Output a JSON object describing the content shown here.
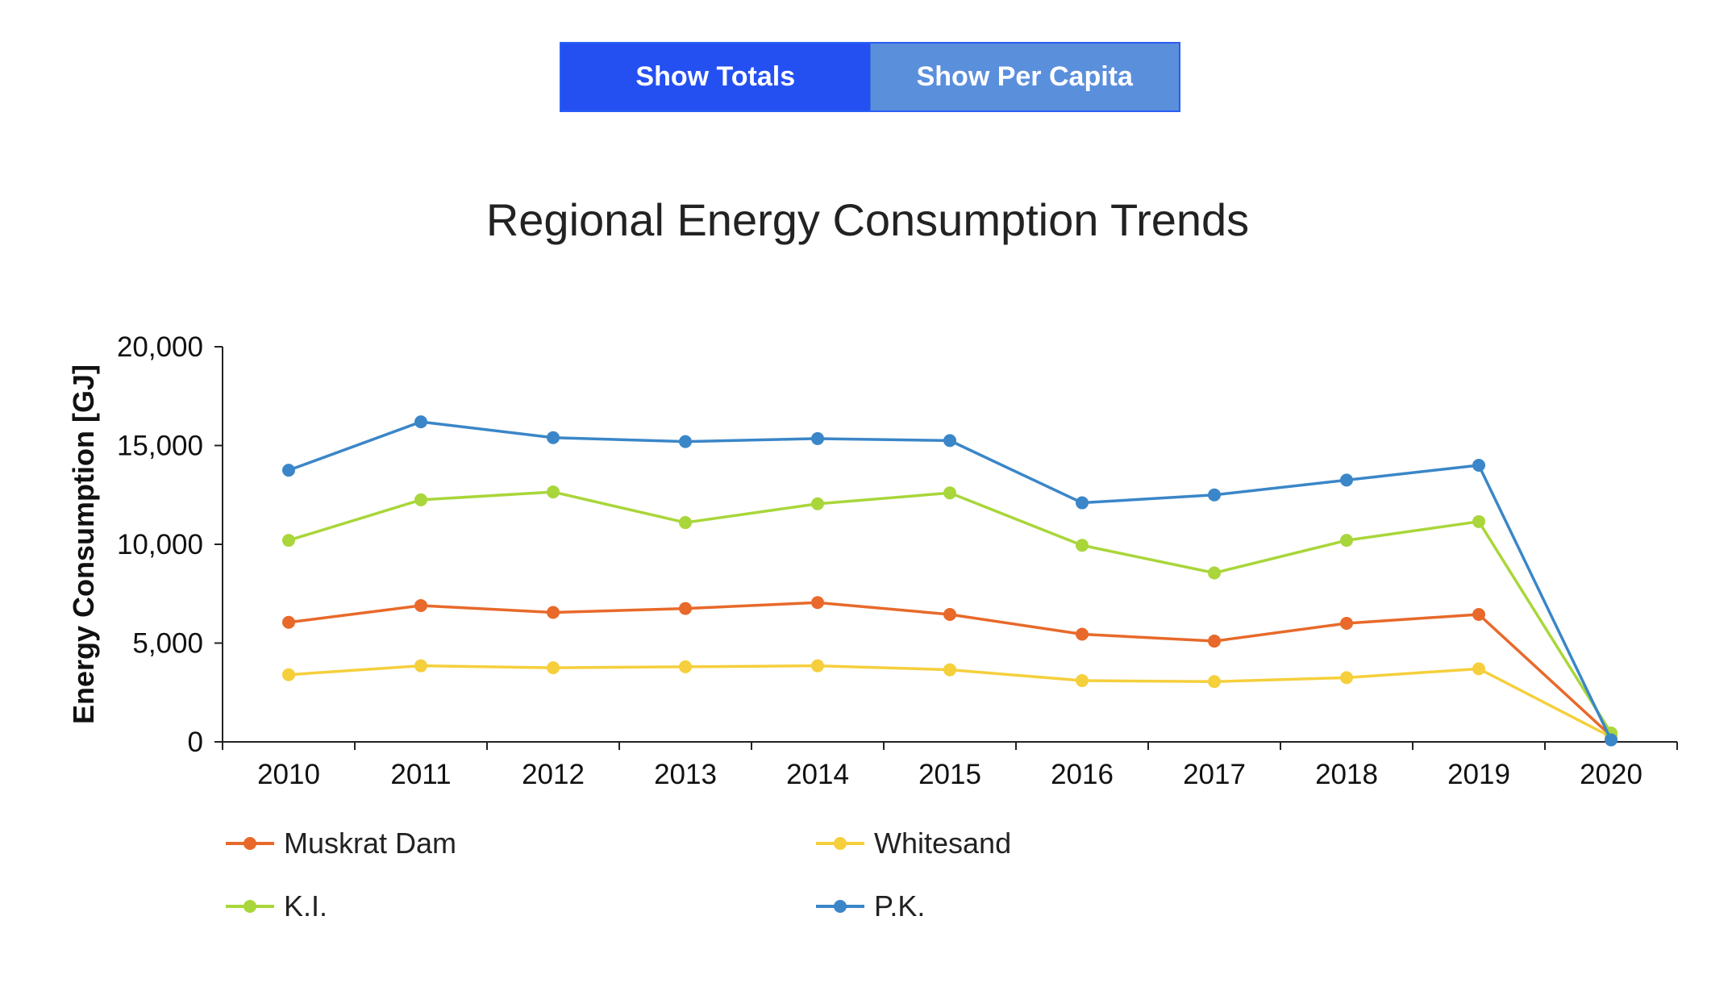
{
  "toggle": {
    "totals_label": "Show Totals",
    "per_capita_label": "Show Per Capita",
    "active": "totals",
    "active_color": "#2450f2",
    "inactive_color": "#5a8fdc"
  },
  "chart_data": {
    "type": "line",
    "title": "Regional Energy Consumption Trends",
    "xlabel": "",
    "ylabel": "Energy Consumption [GJ]",
    "ylim": [
      0,
      20000
    ],
    "yticks": [
      0,
      5000,
      10000,
      15000,
      20000
    ],
    "ytick_labels": [
      "0",
      "5,000",
      "10,000",
      "15,000",
      "20,000"
    ],
    "categories": [
      "2010",
      "2011",
      "2012",
      "2013",
      "2014",
      "2015",
      "2016",
      "2017",
      "2018",
      "2019",
      "2020"
    ],
    "grid": false,
    "legend_position": "bottom",
    "series": [
      {
        "name": "Muskrat Dam",
        "color": "#e8692a",
        "values": [
          6050,
          6900,
          6550,
          6750,
          7050,
          6450,
          5450,
          5100,
          6000,
          6450,
          300
        ]
      },
      {
        "name": "Whitesand",
        "color": "#f5cf3c",
        "values": [
          3400,
          3850,
          3750,
          3800,
          3850,
          3650,
          3100,
          3050,
          3250,
          3700,
          250
        ]
      },
      {
        "name": "K.I.",
        "color": "#a9d63a",
        "values": [
          10200,
          12250,
          12650,
          11100,
          12050,
          12600,
          9950,
          8550,
          10200,
          11150,
          450
        ]
      },
      {
        "name": "P.K.",
        "color": "#3a86c8",
        "values": [
          13750,
          16200,
          15400,
          15200,
          15350,
          15250,
          12100,
          12500,
          13250,
          14000,
          100
        ]
      }
    ]
  }
}
